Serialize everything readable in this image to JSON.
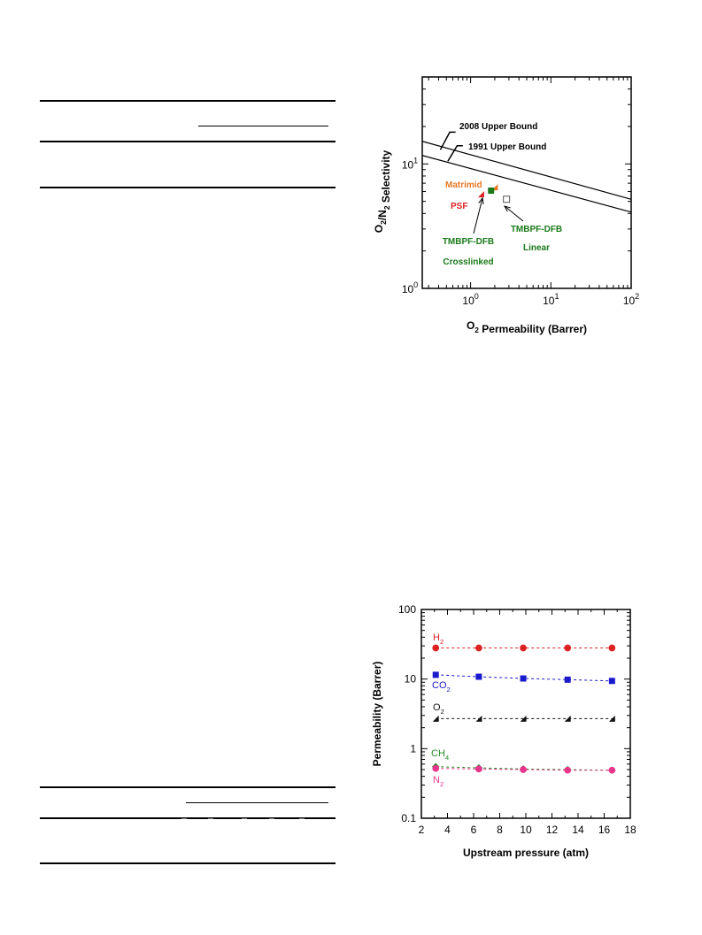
{
  "chart_data": [
    {
      "type": "scatter",
      "title": "",
      "xlabel": "O₂ Permeability (Barrer)",
      "ylabel": "O₂/N₂ Selectivity",
      "xscale": "log",
      "yscale": "log",
      "xlim": [
        0.25,
        100
      ],
      "ylim": [
        1,
        50
      ],
      "x_ticks": [
        1,
        10,
        100
      ],
      "x_tick_labels": [
        "10⁰",
        "10¹",
        "10²"
      ],
      "y_ticks": [
        1,
        10
      ],
      "y_tick_labels": [
        "10⁰",
        "10¹"
      ],
      "grid": false,
      "upper_bounds": [
        {
          "name": "2008 Upper Bound",
          "points": [
            [
              0.25,
              15.2
            ],
            [
              100,
              5.2
            ]
          ]
        },
        {
          "name": "1991 Upper Bound",
          "points": [
            [
              0.25,
              11.7
            ],
            [
              100,
              4.1
            ]
          ]
        }
      ],
      "points": [
        {
          "name": "Matrimid",
          "x": 2.0,
          "y": 6.5,
          "marker": "triangle",
          "color": "#e87722"
        },
        {
          "name": "PSF",
          "x": 1.35,
          "y": 5.7,
          "marker": "triangle",
          "color": "#dd2222"
        },
        {
          "name": "TMBPF-DFB Crosslinked",
          "x": 1.8,
          "y": 6.1,
          "marker": "square-filled",
          "color": "#1a7a1a"
        },
        {
          "name": "TMBPF-DFB Linear",
          "x": 2.8,
          "y": 5.2,
          "marker": "square-open",
          "color": "#555555"
        }
      ],
      "annotations": [
        {
          "text": "2008 Upper Bound",
          "color": "#000000"
        },
        {
          "text": "1991 Upper Bound",
          "color": "#000000"
        },
        {
          "text": "Matrimid",
          "color": "#e87722"
        },
        {
          "text": "PSF",
          "color": "#dd2222"
        },
        {
          "text": "TMBPF-DFB",
          "color": "#1a7a1a"
        },
        {
          "text": "Crosslinked",
          "color": "#1a7a1a"
        },
        {
          "text": "TMBPF-DFB",
          "color": "#1a7a1a"
        },
        {
          "text": "Linear",
          "color": "#1a7a1a"
        }
      ]
    },
    {
      "type": "scatter",
      "title": "",
      "xlabel": "Upstream pressure (atm)",
      "ylabel": "Permeability (Barrer)",
      "xscale": "linear",
      "yscale": "log",
      "xlim": [
        2,
        18
      ],
      "ylim": [
        0.1,
        100
      ],
      "x_ticks": [
        2,
        4,
        6,
        8,
        10,
        12,
        14,
        16,
        18
      ],
      "y_ticks": [
        0.1,
        1,
        10,
        100
      ],
      "y_tick_labels": [
        "0.1",
        "1",
        "10",
        "100"
      ],
      "grid": false,
      "x": [
        3.1,
        6.4,
        9.8,
        13.2,
        16.6
      ],
      "series": [
        {
          "name": "H₂",
          "values": [
            28,
            28,
            28,
            28,
            28
          ],
          "marker": "circle",
          "color": "#dd2222"
        },
        {
          "name": "CO₂",
          "values": [
            11.5,
            10.8,
            10.2,
            9.8,
            9.4
          ],
          "marker": "square",
          "color": "#1a1acc"
        },
        {
          "name": "O₂",
          "values": [
            2.7,
            2.7,
            2.7,
            2.7,
            2.7
          ],
          "marker": "triangle",
          "color": "#111111"
        },
        {
          "name": "CH₄",
          "values": [
            0.55,
            0.53,
            0.51,
            0.5,
            0.49
          ],
          "marker": "diamond",
          "color": "#2a8a2a"
        },
        {
          "name": "N₂",
          "values": [
            0.52,
            0.51,
            0.5,
            0.49,
            0.49
          ],
          "marker": "circle",
          "color": "#e8348a"
        }
      ]
    }
  ]
}
